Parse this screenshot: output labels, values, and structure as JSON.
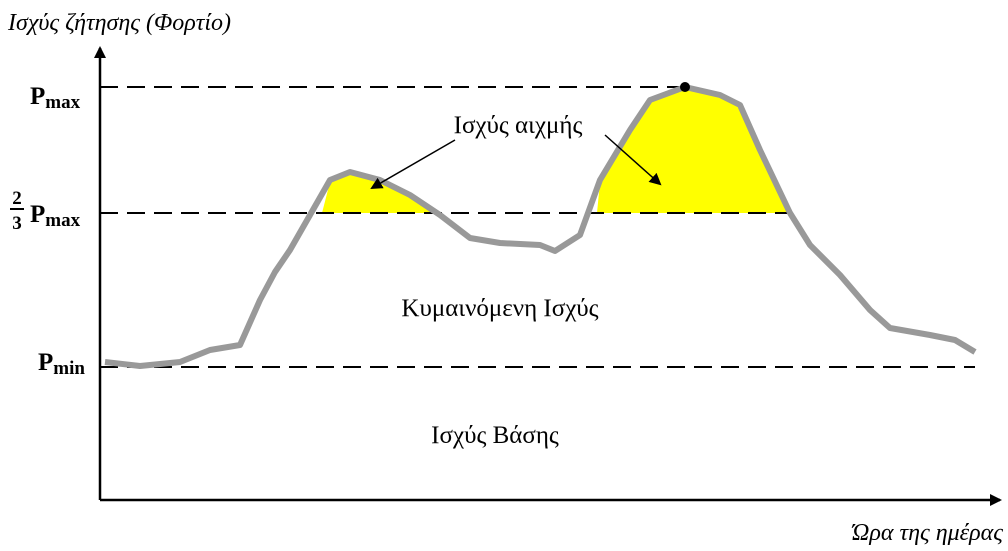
{
  "axes": {
    "y_title": "Ισχύς ζήτησης (Φορτίο)",
    "x_title": "Ώρα της ημέρας"
  },
  "levels": {
    "pmax": {
      "symbol": "P",
      "subscript": "max"
    },
    "two_thirds": {
      "numerator": "2",
      "denominator": "3",
      "symbol": "P",
      "subscript": "max"
    },
    "pmin": {
      "symbol": "P",
      "subscript": "min"
    }
  },
  "regions": {
    "peak": "Ισχύς αιχμής",
    "intermediate": "Κυμαινόμενη Ισχύς",
    "base": "Ισχύς Βάσης"
  }
}
